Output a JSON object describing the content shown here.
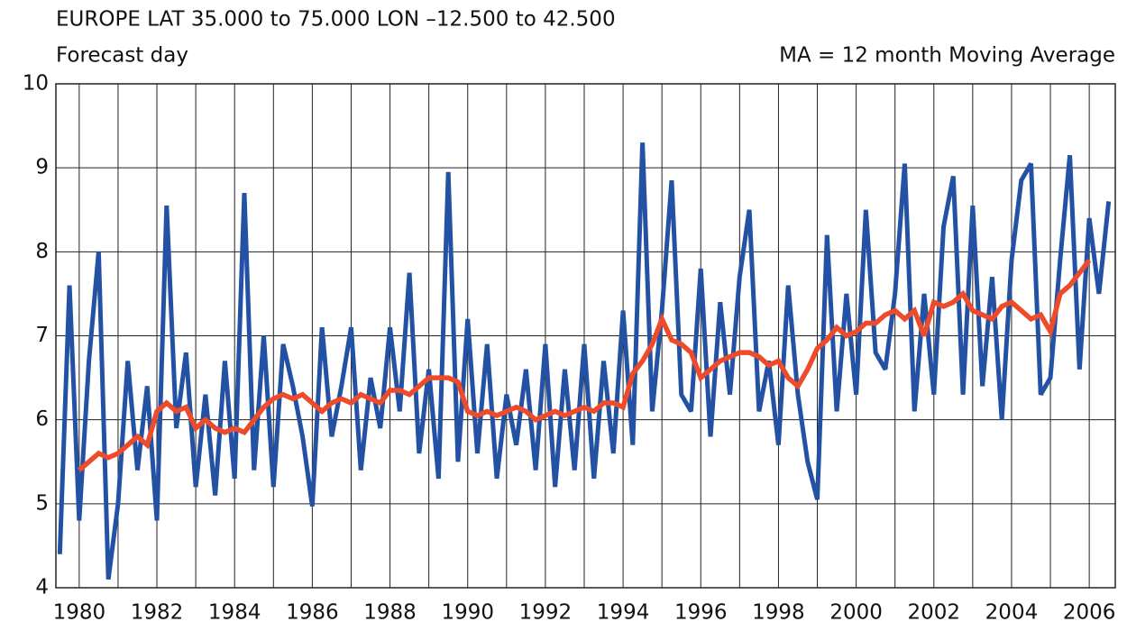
{
  "chart_data": {
    "type": "line",
    "title": "EUROPE LAT 35.000 to 75.000 LON –12.500 to 42.500",
    "subtitle": "Forecast day",
    "annotation": "MA = 12 month   Moving Average",
    "x": [
      1979.5,
      1979.75,
      1980,
      1980.25,
      1980.5,
      1980.75,
      1981,
      1981.25,
      1981.5,
      1981.75,
      1982,
      1982.25,
      1982.5,
      1982.75,
      1983,
      1983.25,
      1983.5,
      1983.75,
      1984,
      1984.25,
      1984.5,
      1984.75,
      1985,
      1985.25,
      1985.5,
      1985.75,
      1986,
      1986.25,
      1986.5,
      1986.75,
      1987,
      1987.25,
      1987.5,
      1987.75,
      1988,
      1988.25,
      1988.5,
      1988.75,
      1989,
      1989.25,
      1989.5,
      1989.75,
      1990,
      1990.25,
      1990.5,
      1990.75,
      1991,
      1991.25,
      1991.5,
      1991.75,
      1992,
      1992.25,
      1992.5,
      1992.75,
      1993,
      1993.25,
      1993.5,
      1993.75,
      1994,
      1994.25,
      1994.5,
      1994.75,
      1995,
      1995.25,
      1995.5,
      1995.75,
      1996,
      1996.25,
      1996.5,
      1996.75,
      1997,
      1997.25,
      1997.5,
      1997.75,
      1998,
      1998.25,
      1998.5,
      1998.75,
      1999,
      1999.25,
      1999.5,
      1999.75,
      2000,
      2000.25,
      2000.5,
      2000.75,
      2001,
      2001.25,
      2001.5,
      2001.75,
      2002,
      2002.25,
      2002.5,
      2002.75,
      2003,
      2003.25,
      2003.5,
      2003.75,
      2004,
      2004.25,
      2004.5,
      2004.75,
      2005,
      2005.25,
      2005.5,
      2005.75,
      2006,
      2006.25,
      2006.5
    ],
    "series": [
      {
        "color": "#2352a5",
        "values": [
          4.4,
          7.6,
          4.8,
          6.7,
          8.0,
          4.1,
          5.0,
          6.7,
          5.4,
          6.4,
          4.8,
          8.55,
          5.9,
          6.8,
          5.2,
          6.3,
          5.1,
          6.7,
          5.3,
          8.7,
          5.4,
          7.0,
          5.2,
          6.9,
          6.4,
          5.8,
          4.97,
          7.1,
          5.8,
          6.4,
          7.1,
          5.4,
          6.5,
          5.9,
          7.1,
          6.1,
          7.75,
          5.6,
          6.6,
          5.3,
          8.95,
          5.5,
          7.2,
          5.6,
          6.9,
          5.3,
          6.3,
          5.7,
          6.6,
          5.4,
          6.9,
          5.2,
          6.6,
          5.4,
          6.9,
          5.3,
          6.7,
          5.6,
          7.3,
          5.7,
          9.3,
          6.1,
          7.3,
          8.85,
          6.3,
          6.1,
          7.8,
          5.8,
          7.4,
          6.3,
          7.7,
          8.5,
          6.1,
          6.7,
          5.7,
          7.6,
          6.3,
          5.5,
          5.05,
          8.2,
          6.1,
          7.5,
          6.3,
          8.5,
          6.8,
          6.6,
          7.5,
          9.05,
          6.1,
          7.5,
          6.3,
          8.3,
          8.9,
          6.3,
          8.55,
          6.4,
          7.7,
          6.0,
          7.9,
          8.85,
          9.05,
          6.3,
          6.5,
          7.9,
          9.15,
          6.6,
          8.4,
          7.5,
          8.6
        ]
      },
      {
        "color": "#ee4b2b",
        "values": [
          null,
          null,
          5.4,
          5.5,
          5.6,
          5.55,
          5.6,
          5.7,
          5.8,
          5.7,
          6.1,
          6.2,
          6.1,
          6.15,
          5.9,
          6.0,
          5.9,
          5.85,
          5.9,
          5.85,
          6.0,
          6.15,
          6.25,
          6.3,
          6.25,
          6.3,
          6.2,
          6.1,
          6.2,
          6.25,
          6.2,
          6.3,
          6.25,
          6.2,
          6.35,
          6.35,
          6.3,
          6.4,
          6.5,
          6.5,
          6.5,
          6.45,
          6.1,
          6.05,
          6.1,
          6.05,
          6.1,
          6.15,
          6.1,
          6.0,
          6.05,
          6.1,
          6.05,
          6.1,
          6.15,
          6.1,
          6.2,
          6.2,
          6.15,
          6.55,
          6.7,
          6.9,
          7.2,
          6.95,
          6.9,
          6.8,
          6.5,
          6.6,
          6.7,
          6.75,
          6.8,
          6.8,
          6.75,
          6.65,
          6.7,
          6.5,
          6.4,
          6.6,
          6.85,
          6.95,
          7.1,
          7.0,
          7.05,
          7.15,
          7.15,
          7.25,
          7.3,
          7.2,
          7.3,
          7.0,
          7.4,
          7.35,
          7.4,
          7.5,
          7.3,
          7.25,
          7.2,
          7.35,
          7.4,
          7.3,
          7.2,
          7.25,
          7.05,
          7.5,
          7.6,
          7.75,
          7.9,
          null,
          null
        ]
      }
    ],
    "xlim": [
      1979.4,
      2006.67
    ],
    "xticks": [
      1980,
      1982,
      1984,
      1986,
      1988,
      1990,
      1992,
      1994,
      1996,
      1998,
      2000,
      2002,
      2004,
      2006
    ],
    "ylim": [
      4,
      10
    ],
    "yticks": [
      4,
      5,
      6,
      7,
      8,
      9,
      10
    ],
    "grid": true
  }
}
